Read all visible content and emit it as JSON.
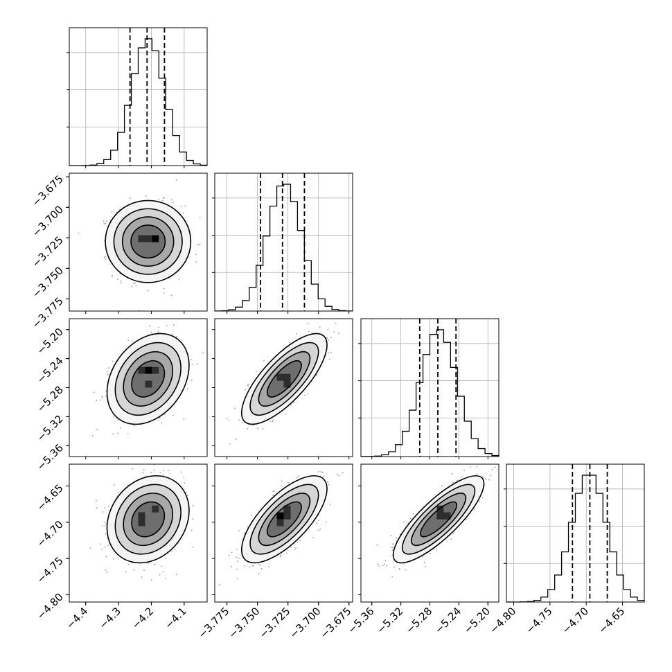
{
  "chart_data": {
    "type": "corner",
    "title": "",
    "colors": {
      "line": "#000000",
      "grid": "#b0b0b0",
      "points": "#9a9a9a",
      "fill_dark": "#000000"
    },
    "parameters": [
      {
        "index": 0,
        "range": [
          -4.45,
          -4.03
        ],
        "mean": -4.21,
        "sigma": 0.05,
        "ticks": [
          -4.4,
          -4.3,
          -4.2,
          -4.1
        ],
        "tick_labels": [
          "−4.4",
          "−4.3",
          "−4.2",
          "−4.1"
        ],
        "quantiles": [
          -4.265,
          -4.213,
          -4.16
        ]
      },
      {
        "index": 1,
        "range": [
          -3.785,
          -3.672
        ],
        "mean": -3.728,
        "sigma": 0.014,
        "ticks": [
          -3.775,
          -3.75,
          -3.725,
          -3.7,
          -3.675
        ],
        "tick_labels": [
          "−3.775",
          "−3.750",
          "−3.725",
          "−3.700",
          "−3.675"
        ],
        "quantiles": [
          -3.7475,
          -3.7295,
          -3.7115
        ]
      },
      {
        "index": 2,
        "range": [
          -5.375,
          -5.185
        ],
        "mean": -5.268,
        "sigma": 0.025,
        "ticks": [
          -5.36,
          -5.32,
          -5.28,
          -5.24,
          -5.2
        ],
        "tick_labels": [
          "−5.36",
          "−5.32",
          "−5.28",
          "−5.24",
          "−5.20"
        ],
        "quantiles": [
          -5.294,
          -5.269,
          -5.244
        ]
      },
      {
        "index": 3,
        "range": [
          -4.81,
          -4.62
        ],
        "mean": -4.696,
        "sigma": 0.024,
        "ticks": [
          -4.8,
          -4.75,
          -4.7,
          -4.65
        ],
        "tick_labels": [
          "−4.80",
          "−4.75",
          "−4.70",
          "−4.65"
        ],
        "quantiles": [
          -4.719,
          -4.695,
          -4.671
        ]
      }
    ],
    "correlations": [
      [
        1,
        0.0,
        0.3,
        0.2
      ],
      [
        0.0,
        1,
        0.75,
        0.7
      ],
      [
        0.3,
        0.75,
        1,
        0.82
      ],
      [
        0.2,
        0.7,
        0.82,
        1
      ]
    ],
    "grid": true
  }
}
